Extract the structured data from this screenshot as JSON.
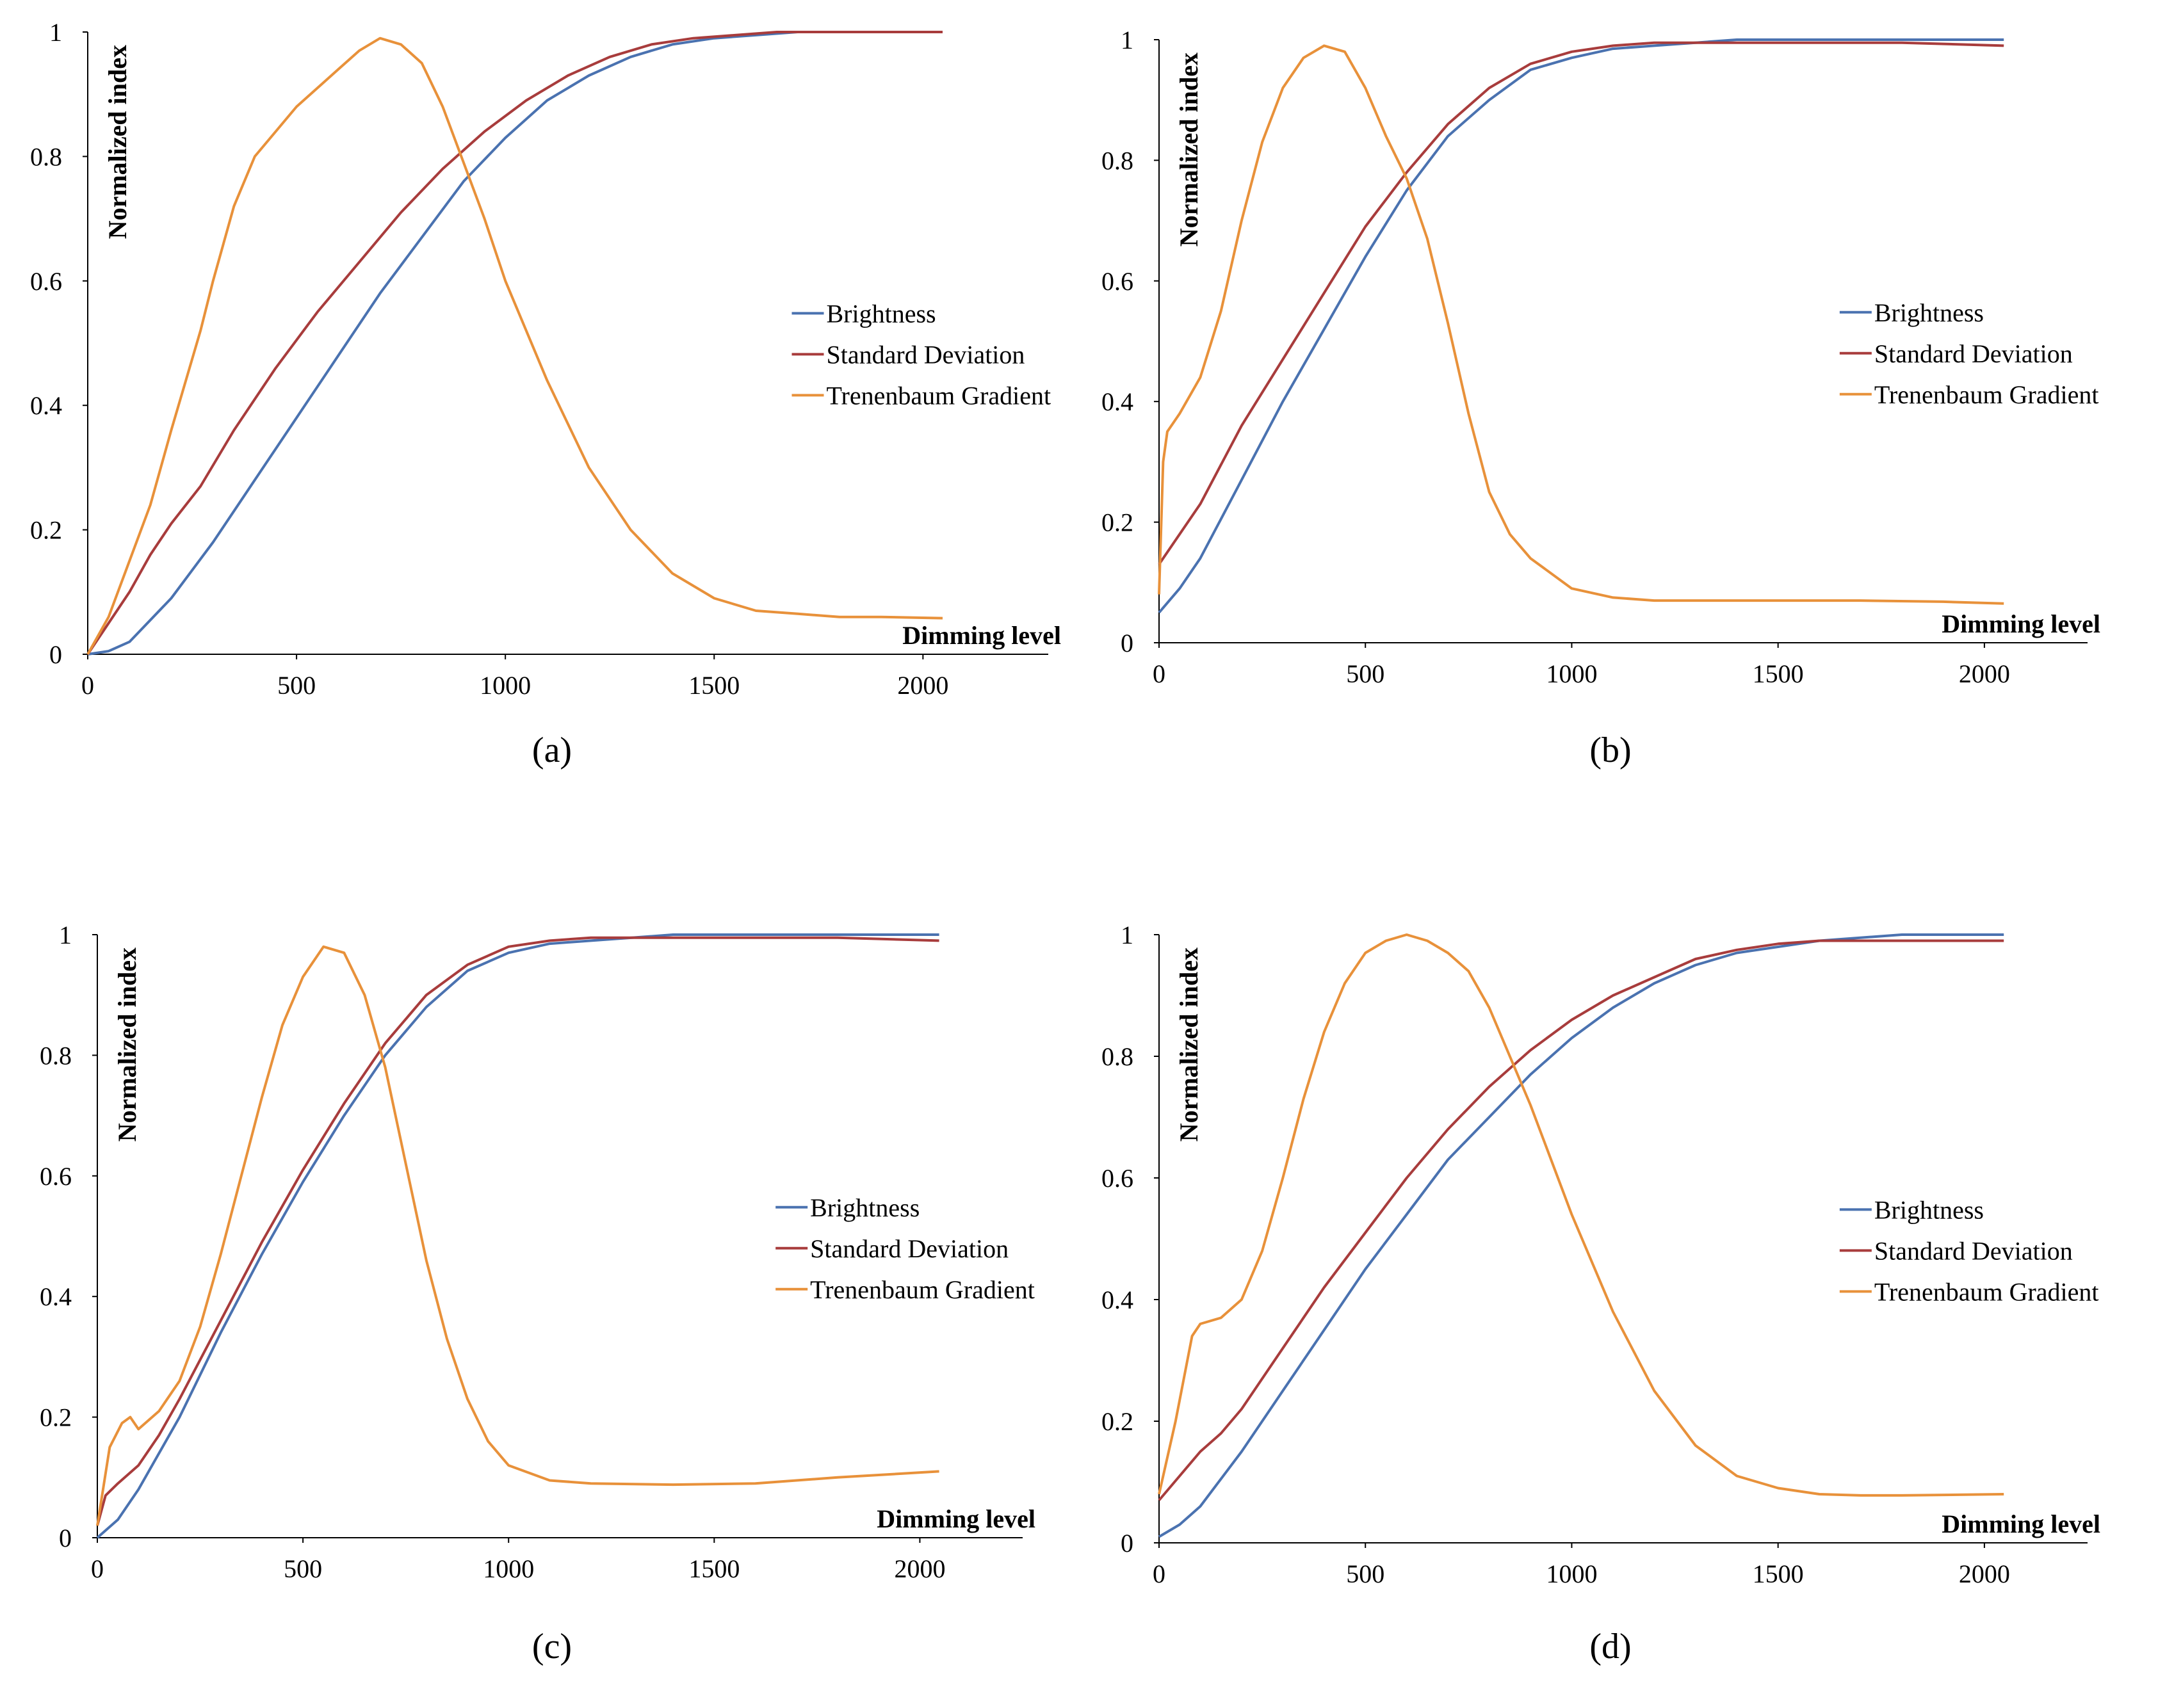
{
  "chart_data": [
    {
      "panel_label": "(a)",
      "type": "line",
      "xlabel": "Dimming level",
      "ylabel": "Normalized index",
      "xlim": [
        0,
        2300
      ],
      "ylim": [
        0,
        1
      ],
      "xticks": [
        "0",
        "500",
        "1000",
        "1500",
        "2000"
      ],
      "yticks": [
        "0",
        "0.2",
        "0.4",
        "0.6",
        "0.8",
        "1"
      ],
      "legend": "center-right",
      "series": [
        {
          "name": "Brightness",
          "color": "#4a72b0",
          "x": [
            0,
            50,
            100,
            200,
            300,
            400,
            500,
            600,
            700,
            800,
            900,
            1000,
            1100,
            1200,
            1300,
            1400,
            1500,
            1600,
            1700,
            1800,
            1900,
            2047
          ],
          "y": [
            0,
            0.005,
            0.02,
            0.09,
            0.18,
            0.28,
            0.38,
            0.48,
            0.58,
            0.67,
            0.76,
            0.83,
            0.89,
            0.93,
            0.96,
            0.98,
            0.99,
            0.995,
            1,
            1,
            1,
            1
          ]
        },
        {
          "name": "Standard Deviation",
          "color": "#a83c3c",
          "x": [
            0,
            50,
            100,
            150,
            200,
            270,
            350,
            450,
            550,
            650,
            750,
            850,
            950,
            1050,
            1150,
            1250,
            1350,
            1450,
            1550,
            1650,
            1800,
            2047
          ],
          "y": [
            0,
            0.05,
            0.1,
            0.16,
            0.21,
            0.27,
            0.36,
            0.46,
            0.55,
            0.63,
            0.71,
            0.78,
            0.84,
            0.89,
            0.93,
            0.96,
            0.98,
            0.99,
            0.995,
            1,
            1,
            1
          ]
        },
        {
          "name": "Trenenbaum Gradient",
          "color": "#e8913a",
          "x": [
            0,
            50,
            100,
            150,
            200,
            270,
            300,
            350,
            400,
            500,
            600,
            650,
            700,
            750,
            800,
            850,
            900,
            950,
            1000,
            1100,
            1200,
            1300,
            1400,
            1500,
            1600,
            1700,
            1800,
            1900,
            2047
          ],
          "y": [
            0,
            0.06,
            0.15,
            0.24,
            0.36,
            0.52,
            0.6,
            0.72,
            0.8,
            0.88,
            0.94,
            0.97,
            0.99,
            0.98,
            0.95,
            0.88,
            0.79,
            0.7,
            0.6,
            0.44,
            0.3,
            0.2,
            0.13,
            0.09,
            0.07,
            0.065,
            0.06,
            0.06,
            0.058
          ]
        }
      ]
    },
    {
      "panel_label": "(b)",
      "type": "line",
      "xlabel": "Dimming level",
      "ylabel": "Normalized index",
      "xlim": [
        0,
        2250
      ],
      "ylim": [
        0,
        1
      ],
      "xticks": [
        "0",
        "500",
        "1000",
        "1500",
        "2000"
      ],
      "yticks": [
        "0",
        "0.2",
        "0.4",
        "0.6",
        "0.8",
        "1"
      ],
      "legend": "center-right",
      "series": [
        {
          "name": "Brightness",
          "color": "#4a72b0",
          "x": [
            0,
            50,
            100,
            200,
            300,
            400,
            500,
            600,
            700,
            800,
            900,
            1000,
            1100,
            1200,
            1300,
            1400,
            1600,
            1800,
            2047
          ],
          "y": [
            0.05,
            0.09,
            0.14,
            0.27,
            0.4,
            0.52,
            0.64,
            0.75,
            0.84,
            0.9,
            0.95,
            0.97,
            0.985,
            0.99,
            0.995,
            1,
            1,
            1,
            1
          ]
        },
        {
          "name": "Standard Deviation",
          "color": "#a83c3c",
          "x": [
            0,
            50,
            100,
            200,
            300,
            400,
            500,
            600,
            700,
            800,
            900,
            1000,
            1100,
            1200,
            1300,
            1400,
            1600,
            1800,
            2047
          ],
          "y": [
            0.13,
            0.18,
            0.23,
            0.36,
            0.47,
            0.58,
            0.69,
            0.78,
            0.86,
            0.92,
            0.96,
            0.98,
            0.99,
            0.995,
            0.995,
            0.995,
            0.995,
            0.995,
            0.99
          ]
        },
        {
          "name": "Trenenbaum Gradient",
          "color": "#e8913a",
          "x": [
            0,
            10,
            20,
            50,
            100,
            150,
            200,
            250,
            300,
            350,
            400,
            450,
            500,
            550,
            600,
            650,
            700,
            750,
            800,
            850,
            900,
            1000,
            1100,
            1200,
            1300,
            1500,
            1700,
            1900,
            2047
          ],
          "y": [
            0.08,
            0.3,
            0.35,
            0.38,
            0.44,
            0.55,
            0.7,
            0.83,
            0.92,
            0.97,
            0.99,
            0.98,
            0.92,
            0.84,
            0.77,
            0.67,
            0.53,
            0.38,
            0.25,
            0.18,
            0.14,
            0.09,
            0.075,
            0.07,
            0.07,
            0.07,
            0.07,
            0.068,
            0.065
          ]
        }
      ]
    },
    {
      "panel_label": "(c)",
      "type": "line",
      "xlabel": "Dimming level",
      "ylabel": "Normalized index",
      "xlim": [
        0,
        2250
      ],
      "ylim": [
        0,
        1
      ],
      "xticks": [
        "0",
        "500",
        "1000",
        "1500",
        "2000"
      ],
      "yticks": [
        "0",
        "0.2",
        "0.4",
        "0.6",
        "0.8",
        "1"
      ],
      "legend": "center-right",
      "series": [
        {
          "name": "Brightness",
          "color": "#4a72b0",
          "x": [
            0,
            50,
            100,
            200,
            300,
            400,
            500,
            600,
            700,
            800,
            900,
            1000,
            1100,
            1200,
            1300,
            1400,
            1600,
            1800,
            2047
          ],
          "y": [
            0,
            0.03,
            0.08,
            0.2,
            0.34,
            0.47,
            0.59,
            0.7,
            0.8,
            0.88,
            0.94,
            0.97,
            0.985,
            0.99,
            0.995,
            1,
            1,
            1,
            1
          ]
        },
        {
          "name": "Standard Deviation",
          "color": "#a83c3c",
          "x": [
            0,
            20,
            50,
            100,
            150,
            200,
            300,
            400,
            500,
            600,
            700,
            800,
            900,
            1000,
            1100,
            1200,
            1400,
            1600,
            1800,
            2047
          ],
          "y": [
            0.02,
            0.07,
            0.09,
            0.12,
            0.17,
            0.23,
            0.36,
            0.49,
            0.61,
            0.72,
            0.82,
            0.9,
            0.95,
            0.98,
            0.99,
            0.995,
            0.995,
            0.995,
            0.995,
            0.99
          ]
        },
        {
          "name": "Trenenbaum Gradient",
          "color": "#e8913a",
          "x": [
            0,
            30,
            60,
            80,
            100,
            150,
            200,
            250,
            300,
            350,
            400,
            450,
            500,
            550,
            600,
            650,
            700,
            750,
            800,
            850,
            900,
            950,
            1000,
            1100,
            1200,
            1400,
            1600,
            1800,
            2047
          ],
          "y": [
            0.02,
            0.15,
            0.19,
            0.2,
            0.18,
            0.21,
            0.26,
            0.35,
            0.47,
            0.6,
            0.73,
            0.85,
            0.93,
            0.98,
            0.97,
            0.9,
            0.78,
            0.62,
            0.46,
            0.33,
            0.23,
            0.16,
            0.12,
            0.095,
            0.09,
            0.088,
            0.09,
            0.1,
            0.11
          ]
        }
      ]
    },
    {
      "panel_label": "(d)",
      "type": "line",
      "xlabel": "Dimming level",
      "ylabel": "Normalized index",
      "xlim": [
        0,
        2250
      ],
      "ylim": [
        0,
        1
      ],
      "xticks": [
        "0",
        "500",
        "1000",
        "1500",
        "2000"
      ],
      "yticks": [
        "0",
        "0.2",
        "0.4",
        "0.6",
        "0.8",
        "1"
      ],
      "legend": "center-right",
      "series": [
        {
          "name": "Brightness",
          "color": "#4a72b0",
          "x": [
            0,
            50,
            100,
            200,
            300,
            400,
            500,
            600,
            700,
            800,
            900,
            1000,
            1100,
            1200,
            1300,
            1400,
            1500,
            1600,
            1800,
            2047
          ],
          "y": [
            0.01,
            0.03,
            0.06,
            0.15,
            0.25,
            0.35,
            0.45,
            0.54,
            0.63,
            0.7,
            0.77,
            0.83,
            0.88,
            0.92,
            0.95,
            0.97,
            0.98,
            0.99,
            1,
            1
          ]
        },
        {
          "name": "Standard Deviation",
          "color": "#a83c3c",
          "x": [
            0,
            50,
            100,
            150,
            200,
            300,
            400,
            500,
            600,
            700,
            800,
            900,
            1000,
            1100,
            1200,
            1300,
            1400,
            1500,
            1600,
            1800,
            2047
          ],
          "y": [
            0.07,
            0.11,
            0.15,
            0.18,
            0.22,
            0.32,
            0.42,
            0.51,
            0.6,
            0.68,
            0.75,
            0.81,
            0.86,
            0.9,
            0.93,
            0.96,
            0.975,
            0.985,
            0.99,
            0.99,
            0.99
          ]
        },
        {
          "name": "Trenenbaum Gradient",
          "color": "#e8913a",
          "x": [
            0,
            40,
            80,
            100,
            150,
            200,
            250,
            300,
            350,
            400,
            450,
            500,
            550,
            600,
            650,
            700,
            750,
            800,
            850,
            900,
            950,
            1000,
            1100,
            1200,
            1300,
            1400,
            1500,
            1600,
            1700,
            1800,
            2047
          ],
          "y": [
            0.08,
            0.2,
            0.34,
            0.36,
            0.37,
            0.4,
            0.48,
            0.6,
            0.73,
            0.84,
            0.92,
            0.97,
            0.99,
            1,
            0.99,
            0.97,
            0.94,
            0.88,
            0.8,
            0.72,
            0.63,
            0.54,
            0.38,
            0.25,
            0.16,
            0.11,
            0.09,
            0.08,
            0.078,
            0.078,
            0.08
          ]
        }
      ]
    }
  ]
}
